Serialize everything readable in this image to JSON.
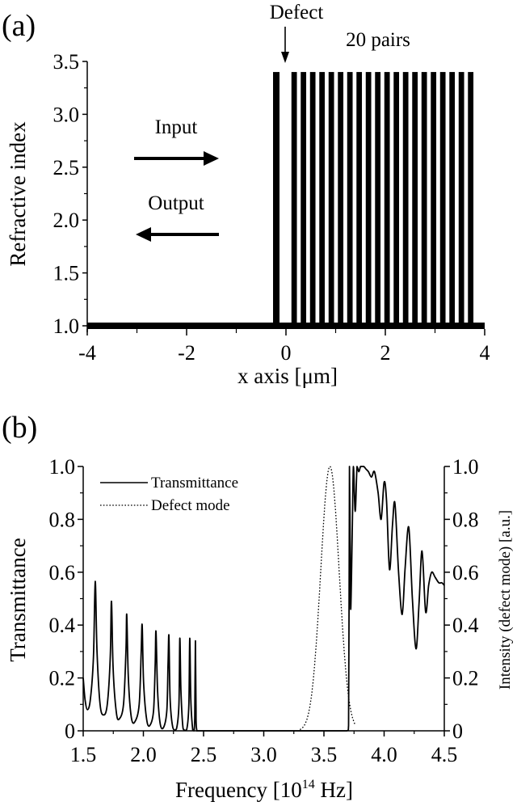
{
  "figure": {
    "panel_a_label": "(a)",
    "panel_b_label": "(b)"
  },
  "chart_data": [
    {
      "type": "bar",
      "panel": "(a)",
      "title": "",
      "xlabel": "x axis [μm]",
      "ylabel": "Refractive index",
      "xlim": [
        -4,
        4
      ],
      "ylim": [
        1.0,
        3.5
      ],
      "xticks": [
        "-4",
        "-2",
        "0",
        "2",
        "4"
      ],
      "xtick_values": [
        -4,
        -2,
        0,
        2,
        4
      ],
      "yticks": [
        "1.0",
        "1.5",
        "2.0",
        "2.5",
        "3.0",
        "3.5"
      ],
      "ytick_values": [
        1.0,
        1.5,
        2.0,
        2.5,
        3.0,
        3.5
      ],
      "grid": false,
      "background_index": 1.0,
      "high_index": 3.4,
      "defect_layer": {
        "x_start": -0.26,
        "x_end": -0.13,
        "n": 3.4
      },
      "stack": {
        "pairs": 20,
        "x_start": 0.11,
        "period": 0.187,
        "layer_width": 0.11,
        "n": 3.4
      },
      "annotations": {
        "defect": "Defect",
        "pairs": "20 pairs",
        "input": "Input",
        "output": "Output"
      }
    },
    {
      "type": "line",
      "panel": "(b)",
      "title": "",
      "xlabel": "Frequency [10^14 Hz]",
      "xlabel_main": "Frequency [10",
      "xlabel_sup": "14",
      "xlabel_end": " Hz]",
      "ylabel": "Transmittance",
      "ylabel_right": "Intensity (defect mode) [a.u.]",
      "xlim": [
        1.5,
        4.5
      ],
      "ylim": [
        0,
        1.0
      ],
      "xticks": [
        "1.5",
        "2.0",
        "2.5",
        "3.0",
        "3.5",
        "4.0",
        "4.5"
      ],
      "xtick_values": [
        1.5,
        2.0,
        2.5,
        3.0,
        3.5,
        4.0,
        4.5
      ],
      "yticks": [
        "0",
        "0.2",
        "0.4",
        "0.6",
        "0.8",
        "1.0"
      ],
      "ytick_values": [
        0,
        0.2,
        0.4,
        0.6,
        0.8,
        1.0
      ],
      "grid": false,
      "legend_position": "upper left",
      "series": [
        {
          "name": "Transmittance",
          "style": "solid",
          "x": [
            1.5,
            1.515,
            1.535,
            1.56,
            1.585,
            1.6,
            1.615,
            1.64,
            1.67,
            1.7,
            1.725,
            1.735,
            1.748,
            1.775,
            1.8,
            1.835,
            1.855,
            1.862,
            1.875,
            1.9,
            1.93,
            1.965,
            1.982,
            1.99,
            2.002,
            2.03,
            2.06,
            2.085,
            2.098,
            2.105,
            2.118,
            2.14,
            2.17,
            2.195,
            2.205,
            2.212,
            2.222,
            2.245,
            2.275,
            2.295,
            2.303,
            2.312,
            2.33,
            2.36,
            2.378,
            2.385,
            2.394,
            2.41,
            2.42,
            2.427,
            2.432,
            2.437,
            2.445,
            2.5,
            3.0,
            3.6,
            3.69,
            3.705,
            3.712,
            3.718,
            3.723,
            3.735,
            3.745,
            3.76,
            3.775,
            3.79,
            3.805,
            3.83,
            3.85,
            3.87,
            3.895,
            3.92,
            3.95,
            3.975,
            4.0,
            4.02,
            4.045,
            4.07,
            4.09,
            4.12,
            4.15,
            4.175,
            4.205,
            4.235,
            4.265,
            4.29,
            4.315,
            4.345,
            4.37,
            4.395,
            4.425,
            4.455,
            4.48,
            4.5
          ],
          "y": [
            0.2,
            0.12,
            0.08,
            0.12,
            0.28,
            0.565,
            0.3,
            0.1,
            0.06,
            0.1,
            0.28,
            0.49,
            0.24,
            0.07,
            0.045,
            0.1,
            0.3,
            0.44,
            0.2,
            0.05,
            0.035,
            0.1,
            0.3,
            0.4,
            0.18,
            0.035,
            0.025,
            0.08,
            0.25,
            0.376,
            0.15,
            0.025,
            0.015,
            0.08,
            0.25,
            0.36,
            0.12,
            0.012,
            0.008,
            0.1,
            0.35,
            0.15,
            0.008,
            0.005,
            0.1,
            0.35,
            0.12,
            0.003,
            0.0,
            0.05,
            0.34,
            0.1,
            0.0,
            0.0,
            0.0,
            0.0,
            0.0,
            0.02,
            1.0,
            0.7,
            0.46,
            0.75,
            1.0,
            0.83,
            1.0,
            0.98,
            1.0,
            1.0,
            0.99,
            0.98,
            0.96,
            0.98,
            0.9,
            0.8,
            0.94,
            0.87,
            0.61,
            0.78,
            0.86,
            0.6,
            0.44,
            0.62,
            0.77,
            0.5,
            0.31,
            0.48,
            0.68,
            0.45,
            0.55,
            0.6,
            0.58,
            0.56,
            0.56,
            0.55
          ]
        },
        {
          "name": "Defect mode",
          "style": "dotted",
          "center": 3.55,
          "fwhm": 0.18,
          "peak": 1.0,
          "x_range": [
            3.3,
            3.76
          ]
        }
      ],
      "legend": [
        "Transmittance",
        "Defect mode"
      ]
    }
  ]
}
